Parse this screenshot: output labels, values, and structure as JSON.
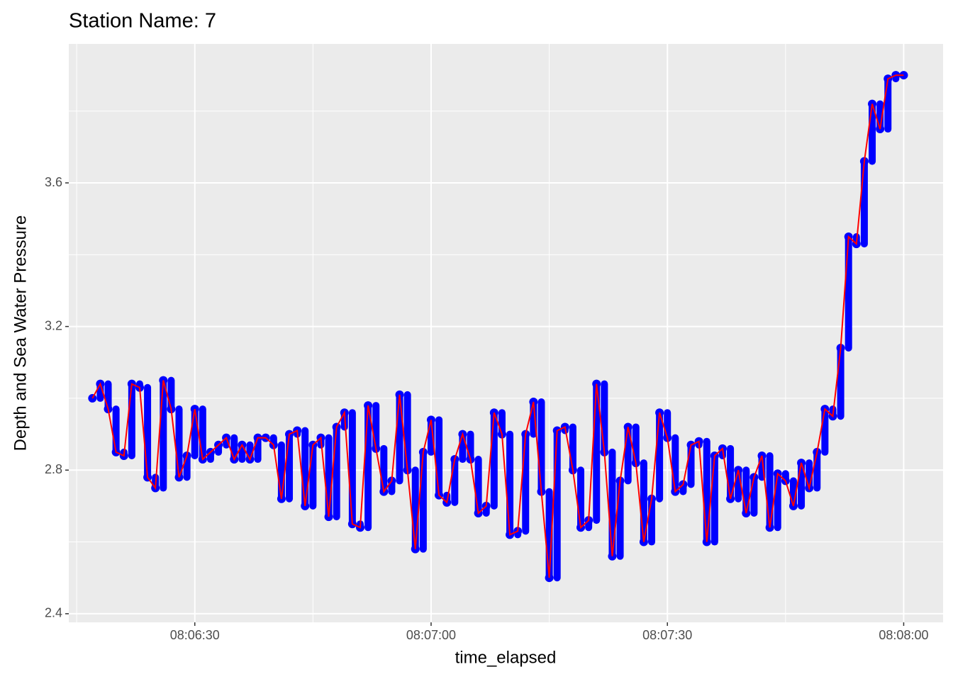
{
  "chart_data": {
    "type": "line",
    "title": "Station Name: 7",
    "x_label": "time_elapsed",
    "y_label": "Depth and Sea Water Pressure",
    "x": [
      "08:06:17",
      "08:06:18",
      "08:06:19",
      "08:06:20",
      "08:06:21",
      "08:06:22",
      "08:06:23",
      "08:06:24",
      "08:06:25",
      "08:06:26",
      "08:06:27",
      "08:06:28",
      "08:06:29",
      "08:06:30",
      "08:06:31",
      "08:06:32",
      "08:06:33",
      "08:06:34",
      "08:06:35",
      "08:06:36",
      "08:06:37",
      "08:06:38",
      "08:06:39",
      "08:06:40",
      "08:06:41",
      "08:06:42",
      "08:06:43",
      "08:06:44",
      "08:06:45",
      "08:06:46",
      "08:06:47",
      "08:06:48",
      "08:06:49",
      "08:06:50",
      "08:06:51",
      "08:06:52",
      "08:06:53",
      "08:06:54",
      "08:06:55",
      "08:06:56",
      "08:06:57",
      "08:06:58",
      "08:06:59",
      "08:07:00",
      "08:07:01",
      "08:07:02",
      "08:07:03",
      "08:07:04",
      "08:07:05",
      "08:07:06",
      "08:07:07",
      "08:07:08",
      "08:07:09",
      "08:07:10",
      "08:07:11",
      "08:07:12",
      "08:07:13",
      "08:07:14",
      "08:07:15",
      "08:07:16",
      "08:07:17",
      "08:07:18",
      "08:07:19",
      "08:07:20",
      "08:07:21",
      "08:07:22",
      "08:07:23",
      "08:07:24",
      "08:07:25",
      "08:07:26",
      "08:07:27",
      "08:07:28",
      "08:07:29",
      "08:07:30",
      "08:07:31",
      "08:07:32",
      "08:07:33",
      "08:07:34",
      "08:07:35",
      "08:07:36",
      "08:07:37",
      "08:07:38",
      "08:07:39",
      "08:07:40",
      "08:07:41",
      "08:07:42",
      "08:07:43",
      "08:07:44",
      "08:07:45",
      "08:07:46",
      "08:07:47",
      "08:07:48",
      "08:07:49",
      "08:07:50",
      "08:07:51",
      "08:07:52",
      "08:07:53",
      "08:07:54",
      "08:07:55",
      "08:07:56",
      "08:07:57",
      "08:07:58",
      "08:07:59",
      "08:08:00"
    ],
    "values": [
      3.0,
      3.04,
      2.97,
      2.85,
      2.84,
      3.04,
      3.03,
      2.78,
      2.75,
      3.05,
      2.97,
      2.78,
      2.84,
      2.97,
      2.83,
      2.85,
      2.87,
      2.89,
      2.83,
      2.87,
      2.83,
      2.89,
      2.89,
      2.87,
      2.72,
      2.9,
      2.91,
      2.7,
      2.87,
      2.89,
      2.67,
      2.92,
      2.96,
      2.65,
      2.64,
      2.98,
      2.86,
      2.74,
      2.77,
      3.01,
      2.8,
      2.58,
      2.85,
      2.94,
      2.73,
      2.71,
      2.83,
      2.9,
      2.83,
      2.68,
      2.7,
      2.96,
      2.9,
      2.62,
      2.63,
      2.9,
      2.99,
      2.74,
      2.5,
      2.91,
      2.92,
      2.8,
      2.64,
      2.66,
      3.04,
      2.85,
      2.56,
      2.77,
      2.92,
      2.82,
      2.6,
      2.72,
      2.96,
      2.89,
      2.74,
      2.76,
      2.87,
      2.88,
      2.6,
      2.84,
      2.86,
      2.72,
      2.8,
      2.68,
      2.78,
      2.84,
      2.64,
      2.79,
      2.77,
      2.7,
      2.82,
      2.75,
      2.85,
      2.97,
      2.95,
      3.14,
      3.45,
      3.43,
      3.66,
      3.82,
      3.75,
      3.89,
      3.9,
      3.9
    ],
    "point_color": "#0000ff",
    "line_color": "#ff0000",
    "xlim": [
      "08:06:14",
      "08:08:05"
    ],
    "xticks": [
      "08:06:30",
      "08:07:00",
      "08:07:30",
      "08:08:00"
    ],
    "ylim": [
      2.376,
      3.987
    ],
    "yticks": [
      2.4,
      2.8,
      3.2,
      3.6
    ],
    "grid": true
  }
}
